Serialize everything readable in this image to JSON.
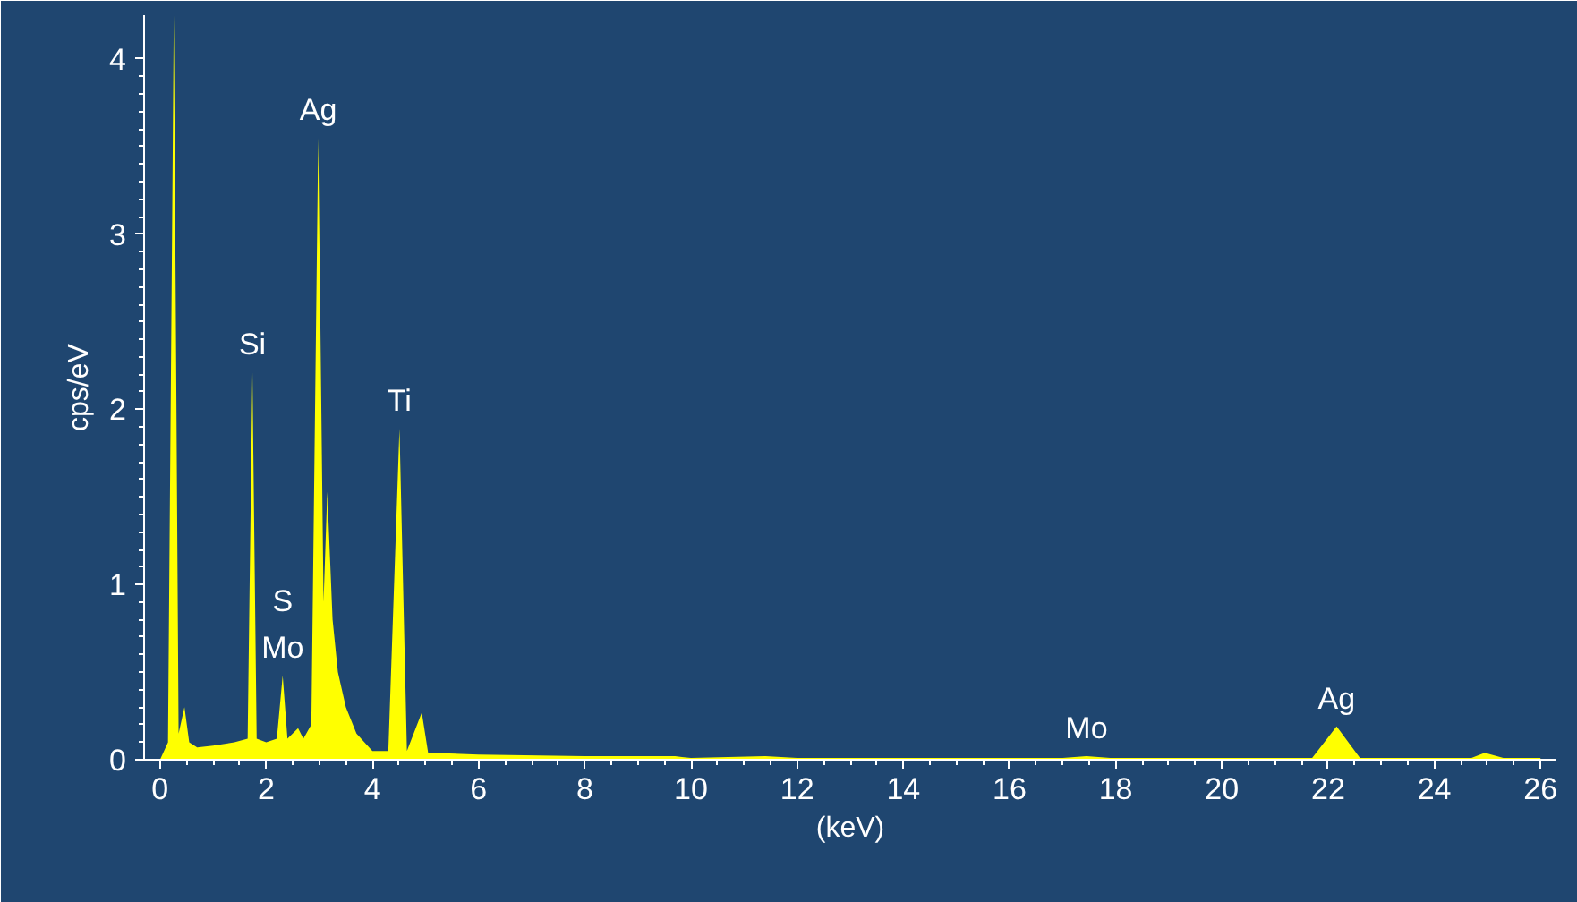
{
  "chart_data": {
    "type": "area",
    "xlabel": "(keV)",
    "ylabel": "cps/eV",
    "xlim": [
      -0.3,
      26.3
    ],
    "ylim": [
      0,
      4.25
    ],
    "xticks": [
      0,
      2,
      4,
      6,
      8,
      10,
      12,
      14,
      16,
      18,
      20,
      22,
      24,
      26
    ],
    "yticks": [
      0,
      1,
      2,
      3,
      4
    ],
    "grid": false,
    "series": [
      {
        "color": "#ffff00",
        "x": [
          0.0,
          0.15,
          0.26,
          0.35,
          0.46,
          0.55,
          0.7,
          1.0,
          1.4,
          1.65,
          1.74,
          1.82,
          2.0,
          2.2,
          2.31,
          2.4,
          2.6,
          2.7,
          2.85,
          2.98,
          3.08,
          3.15,
          3.25,
          3.35,
          3.5,
          3.7,
          4.0,
          4.3,
          4.51,
          4.65,
          4.93,
          5.05,
          6.0,
          8.0,
          9.7,
          10.0,
          11.4,
          12.0,
          17.0,
          17.45,
          17.9,
          21.7,
          22.16,
          22.6,
          24.7,
          24.95,
          25.3,
          26.0
        ],
        "values": [
          0,
          0.1,
          4.25,
          0.15,
          0.3,
          0.1,
          0.07,
          0.08,
          0.1,
          0.12,
          2.21,
          0.12,
          0.1,
          0.12,
          0.48,
          0.12,
          0.18,
          0.12,
          0.2,
          3.55,
          0.9,
          1.53,
          0.8,
          0.5,
          0.3,
          0.15,
          0.05,
          0.05,
          1.89,
          0.05,
          0.27,
          0.04,
          0.03,
          0.02,
          0.02,
          0.01,
          0.02,
          0.01,
          0.01,
          0.02,
          0.01,
          0.01,
          0.19,
          0.01,
          0.01,
          0.04,
          0.01,
          0.01
        ]
      }
    ],
    "annotations": [
      {
        "text": "Ag",
        "x": 2.98,
        "y": 3.55
      },
      {
        "text": "Si",
        "x": 1.74,
        "y": 2.21
      },
      {
        "text": "Ti",
        "x": 4.51,
        "y": 1.89
      },
      {
        "text": "S",
        "x": 2.31,
        "y": 0.48
      },
      {
        "text": "Mo",
        "x": 2.31,
        "y": 0.48
      },
      {
        "text": "Mo",
        "x": 17.45,
        "y": 0.02
      },
      {
        "text": "Ag",
        "x": 22.16,
        "y": 0.19
      }
    ]
  }
}
